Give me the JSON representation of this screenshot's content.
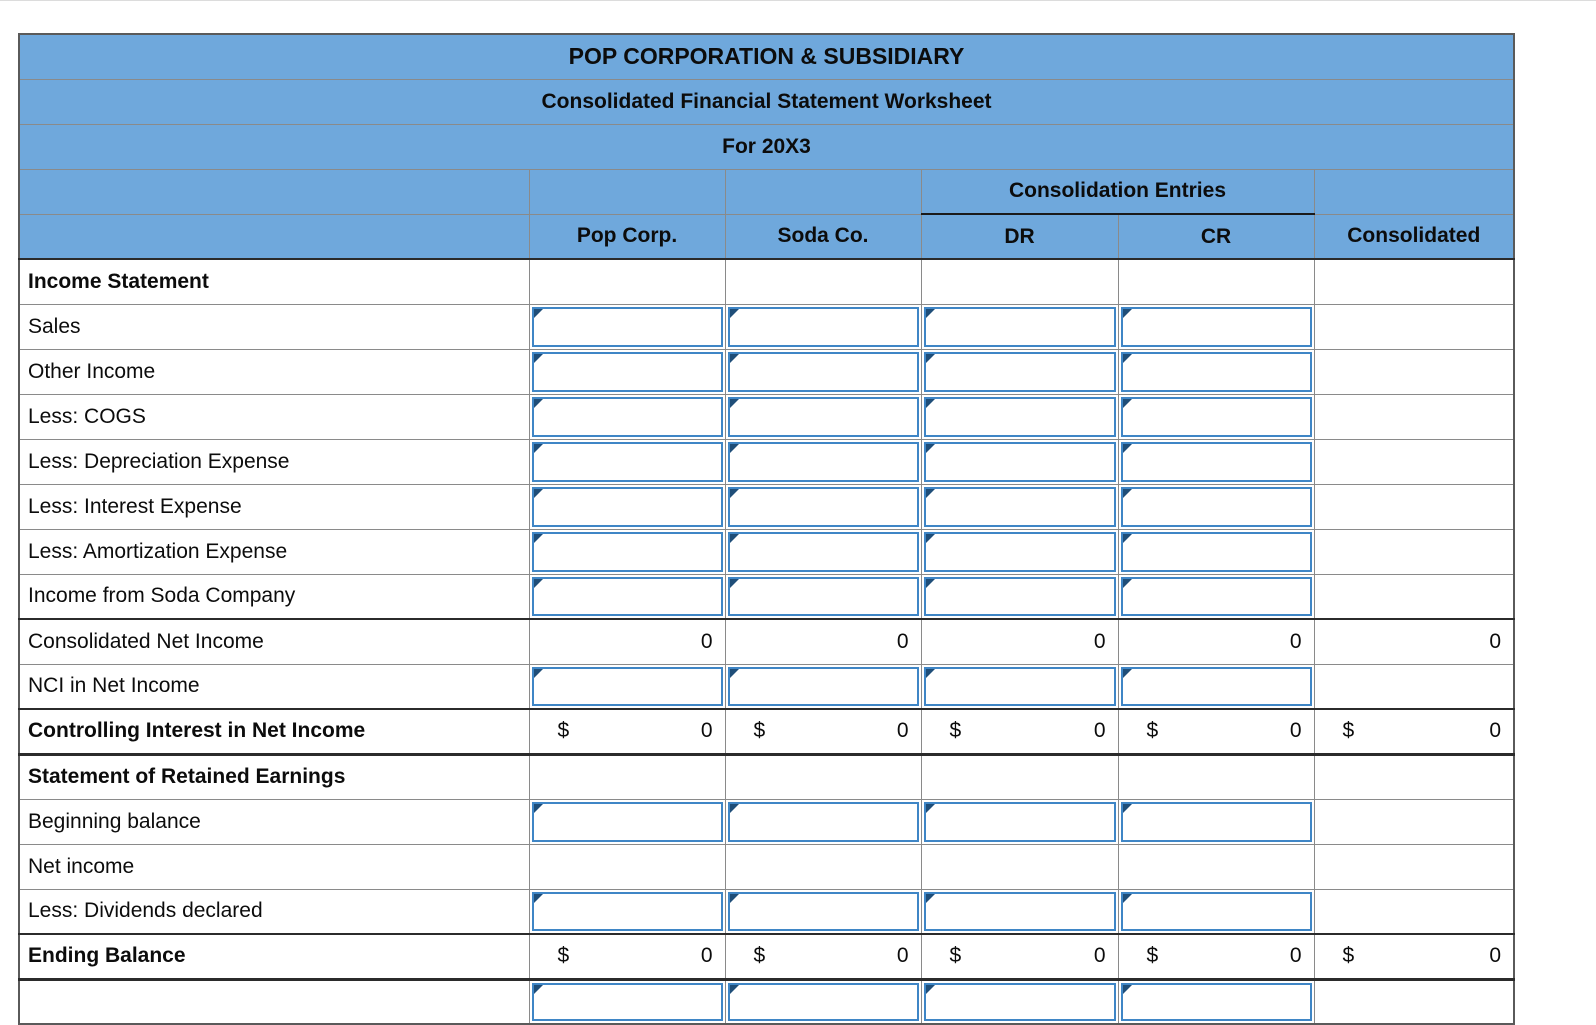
{
  "titles": [
    "POP CORPORATION & SUBSIDIARY",
    "Consolidated Financial Statement Worksheet",
    "For 20X3"
  ],
  "columns": {
    "entries_group": "Consolidation Entries",
    "headers": [
      "Pop Corp.",
      "Soda Co.",
      "DR",
      "CR",
      "Consolidated"
    ]
  },
  "colors": {
    "header_bg": "#6fa8dc",
    "input_border": "#3f86c6",
    "corner_marker": "#1f4e79",
    "grid_line": "#8a8a8a",
    "rule_line": "#2b2b2b"
  },
  "rows": [
    {
      "label": "Income Statement",
      "type": "section"
    },
    {
      "label": "Sales",
      "type": "input"
    },
    {
      "label": "Other Income",
      "type": "input"
    },
    {
      "label": "Less: COGS",
      "type": "input"
    },
    {
      "label": "Less: Depreciation Expense",
      "type": "input"
    },
    {
      "label": "Less: Interest Expense",
      "type": "input"
    },
    {
      "label": "Less: Amortization Expense",
      "type": "input"
    },
    {
      "label": "Income from Soda Company",
      "type": "input"
    },
    {
      "label": "Consolidated Net Income",
      "type": "total",
      "values": [
        "0",
        "0",
        "0",
        "0",
        "0"
      ],
      "top_rule": true
    },
    {
      "label": "NCI in Net Income",
      "type": "input"
    },
    {
      "label": "Controlling Interest in Net Income",
      "type": "currency_total",
      "currency": "$",
      "values": [
        "0",
        "0",
        "0",
        "0",
        "0"
      ],
      "bold": true,
      "top_rule": true,
      "bottom_rule": true
    },
    {
      "label": "Statement of Retained Earnings",
      "type": "section"
    },
    {
      "label": "Beginning balance",
      "type": "input"
    },
    {
      "label": "Net income",
      "type": "plain"
    },
    {
      "label": "Less: Dividends declared",
      "type": "input"
    },
    {
      "label": "Ending Balance",
      "type": "currency_total",
      "currency": "$",
      "values": [
        "0",
        "0",
        "0",
        "0",
        "0"
      ],
      "bold": true,
      "top_rule": true,
      "bottom_rule": true
    },
    {
      "label": "",
      "type": "input_partial"
    }
  ]
}
